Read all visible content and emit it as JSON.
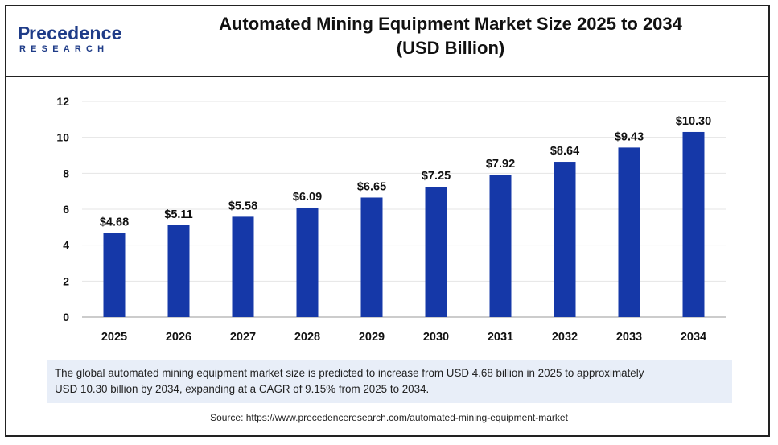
{
  "logo": {
    "main": "recedence",
    "initial": "P",
    "sub": "RESEARCH"
  },
  "title_line1": "Automated Mining Equipment Market Size 2025 to 2034",
  "title_line2": "(USD Billion)",
  "description_line1": "The global automated mining equipment market size is predicted to increase from USD 4.68 billion in 2025 to approximately",
  "description_line2": "USD 10.30 billion by 2034, expanding at a CAGR of 9.15% from 2025 to 2034.",
  "source": "Source: https://www.precedenceresearch.com/automated-mining-equipment-market",
  "colors": {
    "bar": "#1538a8",
    "brand": "#1f3c88",
    "description_bg": "#e8eef8"
  },
  "chart_data": {
    "type": "bar",
    "title": "Automated Mining Equipment Market Size 2025 to 2034 (USD Billion)",
    "categories": [
      "2025",
      "2026",
      "2027",
      "2028",
      "2029",
      "2030",
      "2031",
      "2032",
      "2033",
      "2034"
    ],
    "values": [
      4.68,
      5.11,
      5.58,
      6.09,
      6.65,
      7.25,
      7.92,
      8.64,
      9.43,
      10.3
    ],
    "data_labels": [
      "$4.68",
      "$5.11",
      "$5.58",
      "$6.09",
      "$6.65",
      "$7.25",
      "$7.92",
      "$8.64",
      "$9.43",
      "$10.30"
    ],
    "y_ticks": [
      0,
      2,
      4,
      6,
      8,
      10,
      12
    ],
    "ylim": [
      0,
      12
    ],
    "xlabel": "",
    "ylabel": "",
    "grid": true,
    "legend": "none"
  }
}
